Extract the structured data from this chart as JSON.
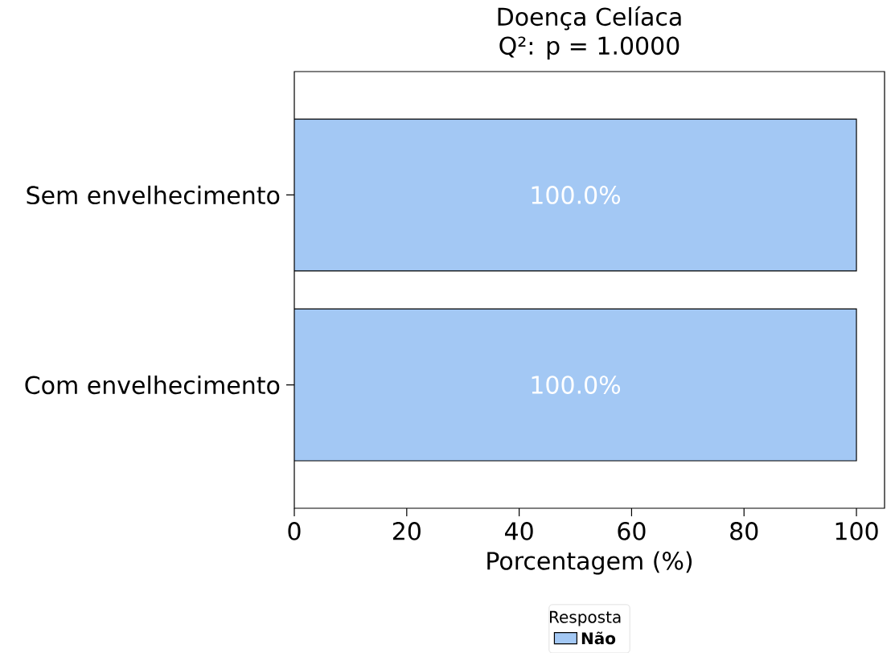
{
  "chart_data": {
    "type": "bar",
    "orientation": "horizontal",
    "title": "Doença Celíaca",
    "subtitle": "Q²: p = 1.0000",
    "xlabel": "Porcentagem (%)",
    "categories": [
      "Sem envelhecimento",
      "Com envelhecimento"
    ],
    "series": [
      {
        "name": "Não",
        "color": "#a3c8f4",
        "values": [
          100,
          100
        ],
        "value_labels": [
          "100.0%",
          "100.0%"
        ]
      }
    ],
    "xlim": [
      0,
      105
    ],
    "xticks": [
      0,
      20,
      40,
      60,
      80,
      100
    ],
    "legend": "bottom",
    "legend_title": "Resposta"
  }
}
